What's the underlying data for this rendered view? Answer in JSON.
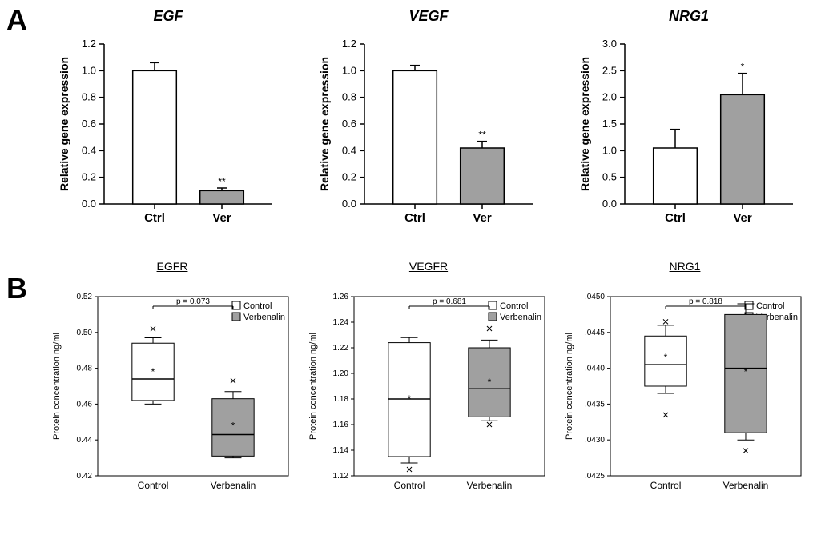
{
  "panelA": {
    "label": "A",
    "ylabel": "Relative gene expression",
    "xlabels": [
      "Ctrl",
      "Ver"
    ],
    "colors": {
      "ctrl": "#ffffff",
      "ver": "#a0a0a0",
      "stroke": "#000000"
    },
    "charts": [
      {
        "title": "EGF",
        "ylim": [
          0,
          1.2
        ],
        "ytick_step": 0.2,
        "bars": [
          {
            "value": 1.0,
            "err": 0.06,
            "fill_key": "ctrl"
          },
          {
            "value": 0.1,
            "err": 0.02,
            "fill_key": "ver",
            "sig": "**"
          }
        ]
      },
      {
        "title": "VEGF",
        "ylim": [
          0,
          1.2
        ],
        "ytick_step": 0.2,
        "bars": [
          {
            "value": 1.0,
            "err": 0.04,
            "fill_key": "ctrl"
          },
          {
            "value": 0.42,
            "err": 0.05,
            "fill_key": "ver",
            "sig": "**"
          }
        ]
      },
      {
        "title": "NRG1",
        "ylim": [
          0,
          3.0
        ],
        "ytick_step": 0.5,
        "bars": [
          {
            "value": 1.05,
            "err": 0.35,
            "fill_key": "ctrl"
          },
          {
            "value": 2.05,
            "err": 0.4,
            "fill_key": "ver",
            "sig": "*"
          }
        ]
      }
    ]
  },
  "panelB": {
    "label": "B",
    "ylabel": "Protein concentration ng/ml",
    "xlabels": [
      "Control",
      "Verbenalin"
    ],
    "legend": [
      "Control",
      "Verbenalin"
    ],
    "colors": {
      "control": "#ffffff",
      "ver": "#a0a0a0",
      "stroke": "#000000"
    },
    "charts": [
      {
        "title": "EGFR",
        "p_text": "p = 0.073",
        "ylim": [
          0.42,
          0.52
        ],
        "yticks": [
          0.42,
          0.44,
          0.46,
          0.48,
          0.5,
          0.52
        ],
        "boxes": [
          {
            "min": 0.46,
            "q1": 0.462,
            "med": 0.474,
            "q3": 0.494,
            "max": 0.497,
            "mean": 0.478,
            "outlier": 0.502,
            "fill_key": "control"
          },
          {
            "min": 0.43,
            "q1": 0.431,
            "med": 0.443,
            "q3": 0.463,
            "max": 0.467,
            "mean": 0.448,
            "outlier": 0.473,
            "fill_key": "ver"
          }
        ]
      },
      {
        "title": "VEGFR",
        "p_text": "p = 0.681",
        "ylim": [
          1.12,
          1.26
        ],
        "yticks": [
          1.12,
          1.14,
          1.16,
          1.18,
          1.2,
          1.22,
          1.24,
          1.26
        ],
        "boxes": [
          {
            "min": 1.13,
            "q1": 1.135,
            "med": 1.18,
            "q3": 1.224,
            "max": 1.228,
            "mean": 1.18,
            "outlier_low": 1.125,
            "fill_key": "control"
          },
          {
            "min": 1.163,
            "q1": 1.166,
            "med": 1.188,
            "q3": 1.22,
            "max": 1.226,
            "mean": 1.193,
            "outlier_low": 1.16,
            "outlier_high": 1.235,
            "fill_key": "ver"
          }
        ]
      },
      {
        "title": "NRG1",
        "p_text": "p = 0.818",
        "ylim": [
          0.0425,
          0.045
        ],
        "yticks": [
          0.0425,
          0.043,
          0.0435,
          0.044,
          0.0445,
          0.045
        ],
        "ytick_labels": [
          ".0425",
          ".0430",
          ".0435",
          ".0440",
          ".0445",
          ".0450"
        ],
        "boxes": [
          {
            "min": 0.04365,
            "q1": 0.04375,
            "med": 0.04405,
            "q3": 0.04445,
            "max": 0.0446,
            "mean": 0.04415,
            "outlier_low": 0.04335,
            "outlier_high": 0.04465,
            "fill_key": "control"
          },
          {
            "min": 0.043,
            "q1": 0.0431,
            "med": 0.044,
            "q3": 0.04475,
            "max": 0.0449,
            "mean": 0.04395,
            "outlier_low": 0.04285,
            "fill_key": "ver"
          }
        ]
      }
    ]
  }
}
